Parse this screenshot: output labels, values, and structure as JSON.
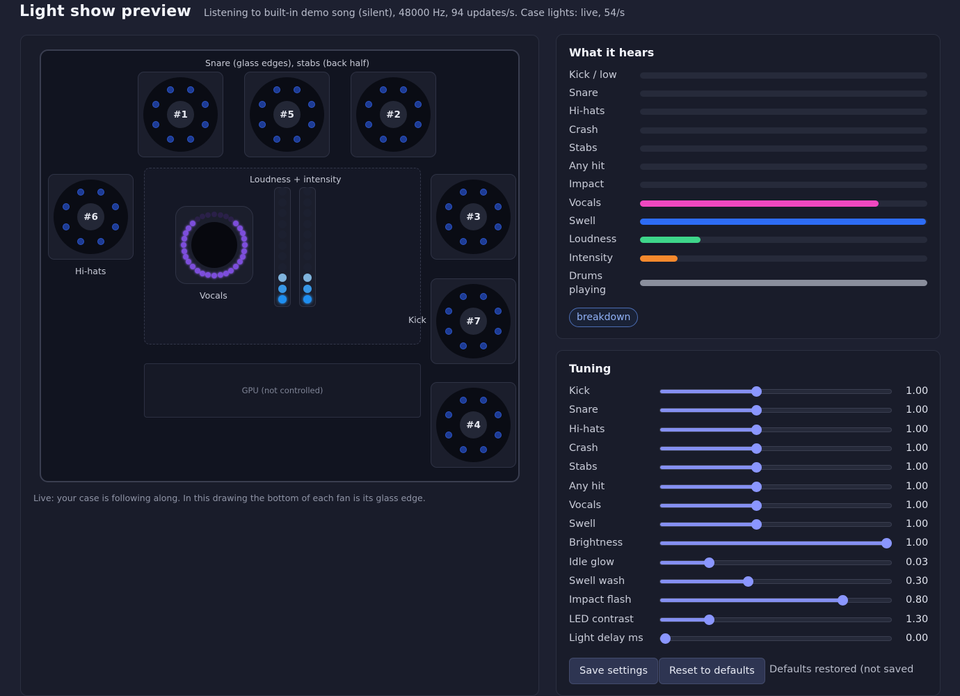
{
  "header": {
    "title": "Light show preview",
    "subtitle": "Listening to built-in demo song (silent), 48000 Hz, 94 updates/s. Case lights: live, 54/s"
  },
  "case": {
    "top_label": "Snare (glass edges), stabs (back half)",
    "hihats_label": "Hi-hats",
    "center_label": "Loudness + intensity",
    "vocals_label": "Vocals",
    "kick_label": "Kick",
    "gpu_label": "GPU (not controlled)",
    "fans": [
      "#1",
      "#5",
      "#2",
      "#6",
      "#3",
      "#7",
      "#4"
    ],
    "caption": "Live: your case is following along. In this drawing the bottom of each fan is its glass edge."
  },
  "hears": {
    "title": "What it hears",
    "rows": [
      {
        "label": "Kick / low",
        "value": 0,
        "color": "#262a3a"
      },
      {
        "label": "Snare",
        "value": 0,
        "color": "#262a3a"
      },
      {
        "label": "Hi-hats",
        "value": 0,
        "color": "#262a3a"
      },
      {
        "label": "Crash",
        "value": 0,
        "color": "#262a3a"
      },
      {
        "label": "Stabs",
        "value": 0,
        "color": "#262a3a"
      },
      {
        "label": "Any hit",
        "value": 0,
        "color": "#262a3a"
      },
      {
        "label": "Impact",
        "value": 0,
        "color": "#262a3a"
      },
      {
        "label": "Vocals",
        "value": 0.83,
        "color": "#f048c0"
      },
      {
        "label": "Swell",
        "value": 0.995,
        "color": "#2d6cf5"
      },
      {
        "label": "Loudness",
        "value": 0.21,
        "color": "#3ed68a"
      },
      {
        "label": "Intensity",
        "value": 0.13,
        "color": "#f5892d"
      },
      {
        "label": "Drums playing",
        "value": 1.0,
        "color": "#8a8e9c"
      }
    ],
    "breakdown_label": "breakdown"
  },
  "tuning": {
    "title": "Tuning",
    "rows": [
      {
        "label": "Kick",
        "fraction": 0.416,
        "display": "1.00"
      },
      {
        "label": "Snare",
        "fraction": 0.416,
        "display": "1.00"
      },
      {
        "label": "Hi-hats",
        "fraction": 0.416,
        "display": "1.00"
      },
      {
        "label": "Crash",
        "fraction": 0.416,
        "display": "1.00"
      },
      {
        "label": "Stabs",
        "fraction": 0.416,
        "display": "1.00"
      },
      {
        "label": "Any hit",
        "fraction": 0.416,
        "display": "1.00"
      },
      {
        "label": "Vocals",
        "fraction": 0.416,
        "display": "1.00"
      },
      {
        "label": "Swell",
        "fraction": 0.416,
        "display": "1.00"
      },
      {
        "label": "Brightness",
        "fraction": 0.98,
        "display": "1.00"
      },
      {
        "label": "Idle glow",
        "fraction": 0.21,
        "display": "0.03"
      },
      {
        "label": "Swell wash",
        "fraction": 0.38,
        "display": "0.30"
      },
      {
        "label": "Impact flash",
        "fraction": 0.79,
        "display": "0.80"
      },
      {
        "label": "LED contrast",
        "fraction": 0.21,
        "display": "1.30"
      },
      {
        "label": "Light delay ms",
        "fraction": 0.02,
        "display": "0.00"
      }
    ],
    "save_label": "Save settings",
    "reset_label": "Reset to defaults",
    "status": "Defaults restored (not saved"
  }
}
